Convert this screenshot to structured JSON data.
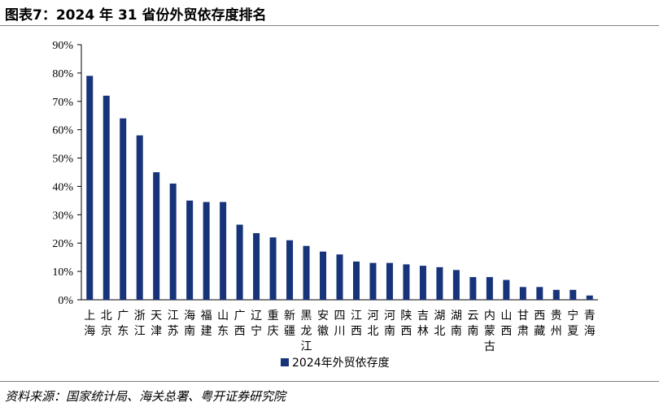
{
  "title": "图表7：2024 年 31 省份外贸依存度排名",
  "source": "资料来源：国家统计局、海关总署、粤开证券研究院",
  "colors": {
    "bar": "#17337a",
    "axis": "#000000"
  },
  "chart_data": {
    "type": "bar",
    "categories": [
      "上海",
      "北京",
      "广东",
      "浙江",
      "天津",
      "江苏",
      "海南",
      "福建",
      "山东",
      "广西",
      "辽宁",
      "重庆",
      "新疆",
      "黑龙江",
      "安徽",
      "四川",
      "江西",
      "河北",
      "河南",
      "陕西",
      "吉林",
      "湖北",
      "湖南",
      "云南",
      "内蒙古",
      "山西",
      "甘肃",
      "西藏",
      "贵州",
      "宁夏",
      "青海"
    ],
    "series": [
      {
        "name": "2024年外贸依存度",
        "values": [
          79,
          72,
          64,
          58,
          45,
          41,
          35,
          34.5,
          34.5,
          26.5,
          23.5,
          22,
          21,
          19,
          17,
          16,
          13.5,
          13,
          13,
          12.5,
          12,
          11.5,
          10.5,
          8,
          8,
          7,
          4.5,
          4.5,
          3.5,
          3.5,
          1.5
        ]
      }
    ],
    "ylim": [
      0,
      90
    ],
    "yticks": [
      "0%",
      "10%",
      "20%",
      "30%",
      "40%",
      "50%",
      "60%",
      "70%",
      "80%",
      "90%"
    ],
    "ytick_values": [
      0,
      10,
      20,
      30,
      40,
      50,
      60,
      70,
      80,
      90
    ],
    "legend": "bottom-center",
    "grid": false,
    "xlabel": "",
    "ylabel": ""
  }
}
